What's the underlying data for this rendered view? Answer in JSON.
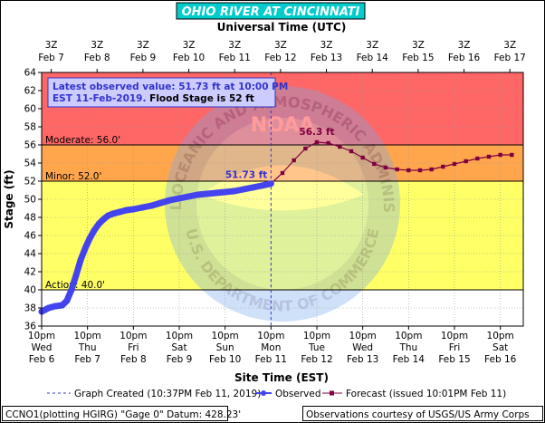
{
  "chart_data": {
    "type": "line",
    "title": "OHIO RIVER AT CINCINNATI",
    "top_axis_title": "Universal Time (UTC)",
    "xlabel": "Site Time (EST)",
    "ylabel": "Stage (ft)",
    "ylim": [
      36,
      64
    ],
    "yticks": [
      36,
      38,
      40,
      42,
      44,
      46,
      48,
      50,
      52,
      54,
      56,
      58,
      60,
      62,
      64
    ],
    "xlim_days": [
      0,
      10.5
    ],
    "bottom_ticks": [
      {
        "l1": "10pm",
        "l2": "Wed",
        "l3": "Feb 6"
      },
      {
        "l1": "10pm",
        "l2": "Thu",
        "l3": "Feb 7"
      },
      {
        "l1": "10pm",
        "l2": "Fri",
        "l3": "Feb 8"
      },
      {
        "l1": "10pm",
        "l2": "Sat",
        "l3": "Feb 9"
      },
      {
        "l1": "10pm",
        "l2": "Sun",
        "l3": "Feb 10"
      },
      {
        "l1": "10pm",
        "l2": "Mon",
        "l3": "Feb 11"
      },
      {
        "l1": "10pm",
        "l2": "Tue",
        "l3": "Feb 12"
      },
      {
        "l1": "10pm",
        "l2": "Wed",
        "l3": "Feb 13"
      },
      {
        "l1": "10pm",
        "l2": "Thu",
        "l3": "Feb 14"
      },
      {
        "l1": "10pm",
        "l2": "Fri",
        "l3": "Feb 15"
      },
      {
        "l1": "10pm",
        "l2": "Sat",
        "l3": "Feb 16"
      }
    ],
    "top_ticks": [
      {
        "l1": "3Z",
        "l2": "Feb 7"
      },
      {
        "l1": "3Z",
        "l2": "Feb 8"
      },
      {
        "l1": "3Z",
        "l2": "Feb 9"
      },
      {
        "l1": "3Z",
        "l2": "Feb 10"
      },
      {
        "l1": "3Z",
        "l2": "Feb 11"
      },
      {
        "l1": "3Z",
        "l2": "Feb 12"
      },
      {
        "l1": "3Z",
        "l2": "Feb 13"
      },
      {
        "l1": "3Z",
        "l2": "Feb 14"
      },
      {
        "l1": "3Z",
        "l2": "Feb 15"
      },
      {
        "l1": "3Z",
        "l2": "Feb 16"
      },
      {
        "l1": "3Z",
        "l2": "Feb 17"
      }
    ],
    "bands": [
      {
        "from": 36,
        "to": 40,
        "color": "#ffffff"
      },
      {
        "from": 40,
        "to": 52,
        "color": "#ffff66"
      },
      {
        "from": 52,
        "to": 56,
        "color": "#ffa64d"
      },
      {
        "from": 56,
        "to": 64,
        "color": "#ff6666"
      }
    ],
    "thresholds": [
      {
        "value": 56,
        "label": "Moderate:  56.0'"
      },
      {
        "value": 52,
        "label": "Minor:  52.0'"
      },
      {
        "value": 40,
        "label": "Action:  40.0'"
      }
    ],
    "observed": {
      "name": "Observed",
      "color": "#4444ee",
      "x_days": [
        0,
        0.15,
        0.3,
        0.45,
        0.55,
        0.65,
        0.75,
        0.85,
        0.95,
        1.05,
        1.15,
        1.25,
        1.35,
        1.45,
        1.55,
        1.7,
        1.85,
        2.0,
        2.2,
        2.4,
        2.6,
        2.8,
        3.0,
        3.2,
        3.4,
        3.6,
        3.8,
        4.0,
        4.2,
        4.4,
        4.6,
        4.8,
        5.0
      ],
      "y_ft": [
        37.6,
        38.0,
        38.2,
        38.3,
        38.8,
        40.0,
        41.6,
        43.3,
        44.6,
        45.7,
        46.6,
        47.3,
        47.8,
        48.2,
        48.4,
        48.6,
        48.8,
        48.9,
        49.1,
        49.3,
        49.6,
        49.9,
        50.1,
        50.3,
        50.5,
        50.6,
        50.7,
        50.8,
        50.9,
        51.1,
        51.3,
        51.5,
        51.73
      ]
    },
    "forecast": {
      "name": "Forecast (issued 10:01PM Feb 11)",
      "color": "#800040",
      "x_days": [
        5.0,
        5.25,
        5.5,
        5.75,
        6.0,
        6.25,
        6.5,
        6.75,
        7.0,
        7.25,
        7.5,
        7.75,
        8.0,
        8.25,
        8.5,
        8.75,
        9.0,
        9.25,
        9.5,
        9.75,
        10.0,
        10.25
      ],
      "y_ft": [
        51.73,
        52.9,
        54.3,
        55.6,
        56.3,
        56.2,
        55.8,
        55.3,
        54.6,
        53.9,
        53.5,
        53.3,
        53.2,
        53.2,
        53.3,
        53.6,
        53.9,
        54.2,
        54.5,
        54.7,
        54.9,
        54.9
      ]
    },
    "graph_created_day": 5.0,
    "annotations": {
      "observed_value": "51.73 ft",
      "crest": "56.3 ft",
      "crest_x_days": 6.0
    }
  },
  "info_box": {
    "line1": "Latest observed value: 51.73 ft at 10:00 PM",
    "line2a": "EST 11-Feb-2019.",
    "line2b": " Flood Stage is 52 ft"
  },
  "legend": {
    "created": "Graph Created (10:37PM Feb 11, 2019)",
    "observed": "Observed",
    "forecast": "Forecast (issued 10:01PM Feb 11)"
  },
  "footer": {
    "left": "CCNO1(plotting HGIRG) \"Gage 0\" Datum: 428.23'",
    "right": "Observations courtesy of USGS/US Army Corps"
  },
  "watermark": {
    "arc_text": "NATIONAL OCEANIC AND ATMOSPHERIC ADMINISTRATION",
    "bottom_text": "U.S. DEPARTMENT OF COMMERCE",
    "center_text": "NOAA"
  },
  "colors": {
    "title_bar": "#00cccc",
    "title_text": "#ffffff",
    "info_bg": "#ccccff",
    "info_text": "#3333cc"
  }
}
